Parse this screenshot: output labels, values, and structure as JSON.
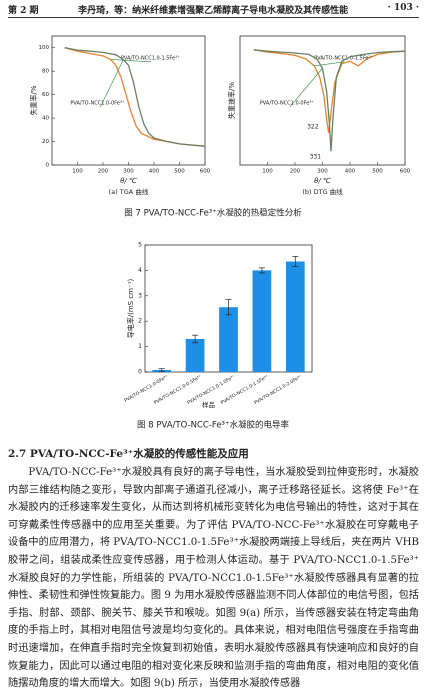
{
  "header": {
    "issue": "第 2 期",
    "running_title": "李丹琦，等：纳米纤维素增强聚乙烯醇离子导电水凝胶及其传感性能",
    "page": "· 103 ·"
  },
  "figure7": {
    "panels": [
      {
        "type": "line",
        "xlabel": "θ/ ℃",
        "ylabel": "失重率/%",
        "sublabel": "(a) TGA 曲线",
        "xlim": [
          0,
          600
        ],
        "xticks": [
          100,
          200,
          300,
          400,
          500,
          600
        ],
        "ylim": [
          0,
          110
        ],
        "yticks": [
          0,
          20,
          40,
          60,
          80,
          100
        ],
        "series": [
          {
            "name": "PVA/TO-NCC1.0-1.5Fe³⁺",
            "color": "#e8822a",
            "x": [
              50,
              100,
              150,
              200,
              230,
              250,
              270,
              290,
              310,
              330,
              350,
              400,
              450,
              500,
              550,
              600
            ],
            "values": [
              100,
              97,
              95,
              93,
              90,
              85,
              75,
              60,
              45,
              33,
              27,
              22,
              20,
              18,
              17,
              16
            ]
          },
          {
            "name": "PVA/TO-NCC1.0-0Fe³⁺",
            "color": "#6b7f62",
            "x": [
              50,
              100,
              150,
              200,
              250,
              280,
              300,
              320,
              340,
              360,
              380,
              400,
              450,
              500,
              550,
              600
            ],
            "values": [
              100,
              98,
              97,
              96,
              94,
              90,
              85,
              70,
              50,
              35,
              27,
              23,
              20,
              18,
              17,
              16
            ]
          }
        ]
      },
      {
        "type": "line",
        "xlabel": "θ/ ℃",
        "ylabel": "失重速率/%",
        "sublabel": "(b) DTG 曲线",
        "xlim": [
          0,
          600
        ],
        "xticks": [
          100,
          200,
          300,
          400,
          500,
          600
        ],
        "ylim": [
          -25,
          3
        ],
        "annotations": [
          "322",
          "331"
        ],
        "series": [
          {
            "name": "PVA/TO-NCC1.0-1.5Fe³⁺",
            "color": "#e8822a",
            "x": [
              50,
              100,
              150,
              200,
              240,
              270,
              290,
              305,
              315,
              322,
              330,
              345,
              370,
              400,
              430,
              460,
              500,
              550,
              600
            ],
            "values": [
              0,
              -0.5,
              -0.8,
              -1.2,
              -2,
              -3.5,
              -6,
              -10,
              -15,
              -18,
              -14,
              -7,
              -3,
              -2.5,
              -3.5,
              -2,
              -1,
              -0.5,
              -0.3
            ]
          },
          {
            "name": "PVA/TO-NCC1.0-0Fe³⁺",
            "color": "#6b7f62",
            "x": [
              50,
              100,
              150,
              200,
              250,
              280,
              300,
              315,
              325,
              331,
              338,
              350,
              370,
              400,
              450,
              500,
              550,
              600
            ],
            "values": [
              0,
              -0.3,
              -0.5,
              -0.7,
              -1,
              -2,
              -4,
              -9,
              -16,
              -22,
              -15,
              -6,
              -2.5,
              -1.5,
              -1,
              -0.6,
              -0.4,
              -0.3
            ]
          }
        ]
      }
    ],
    "caption": "图 7   PVA/TO-NCC-Fe³⁺水凝胶的热稳定性分析"
  },
  "figure8": {
    "type": "bar",
    "xlabel": "样品",
    "ylabel": "导电率/(mS cm⁻¹)",
    "categories": [
      "PVA/TO-NCC1.0-0Fe³⁺",
      "PVA/TO-NCC1.0-0.5Fe³⁺",
      "PVA/TO-NCC1.0-1.0Fe³⁺",
      "PVA/TO-NCC1.0-1.5Fe³⁺",
      "PVA/TO-NCC1.0-2.0Fe³⁺"
    ],
    "values": [
      0.08,
      1.3,
      2.55,
      4.0,
      4.35
    ],
    "errors": [
      0.05,
      0.15,
      0.3,
      0.1,
      0.2
    ],
    "color": "#1e8fe6",
    "ylim": [
      0,
      5
    ],
    "yticks": [
      0,
      1,
      2,
      3,
      4,
      5
    ],
    "caption": "图 8   PVA/TO-NCC-Fe³⁺水凝胶的电导率"
  },
  "section": {
    "heading": "2.7   PVA/TO-NCC-Fe³⁺水凝胶的传感性能及应用",
    "paragraph": "PVA/TO-NCC-Fe³⁺水凝胶具有良好的离子导电性，当水凝胶受到拉伸变形时，水凝胶内部三维结构随之变形，导致内部离子通道孔径减小，离子迁移路径延长。这将使 Fe³⁺在水凝胶内的迁移速率发生变化，从而达到将机械形变转化为电信号输出的特性，这对于其在可穿戴柔性传感器中的应用至关重要。为了评估 PVA/TO-NCC-Fe³⁺水凝胶在可穿戴电子设备中的应用潜力，将 PVA/TO-NCC1.0-1.5Fe³⁺水凝胶两端接上导线后，夹在两片 VHB 胶带之间，组装成柔性应变传感器，用于检测人体运动。基于 PVA/TO-NCC1.0-1.5Fe³⁺水凝胶良好的力学性能，所组装的 PVA/TO-NCC1.0-1.5Fe³⁺水凝胶传感器具有显著的拉伸性、柔韧性和弹性恢复能力。图 9 为用水凝胶传感器监测不同人体部位的电信号图，包括手指、肘部、颈部、腕关节、膝关节和喉咙。如图 9(a) 所示，当传感器安装在特定弯曲角度的手指上时，其相对电阻信号波是均匀变化的。具体来说，相对电阻信号强度在手指弯曲时迅速增加，在伸直手指时完全恢复到初始值，表明水凝胶传感器具有快速响应和良好的自恢复能力，因此可以通过电阻的相对变化来反映和监测手指的弯曲角度，相对电阻的变化值随摆动角度的增大而增大。如图 9(b) 所示，当使用水凝胶传感器"
  }
}
